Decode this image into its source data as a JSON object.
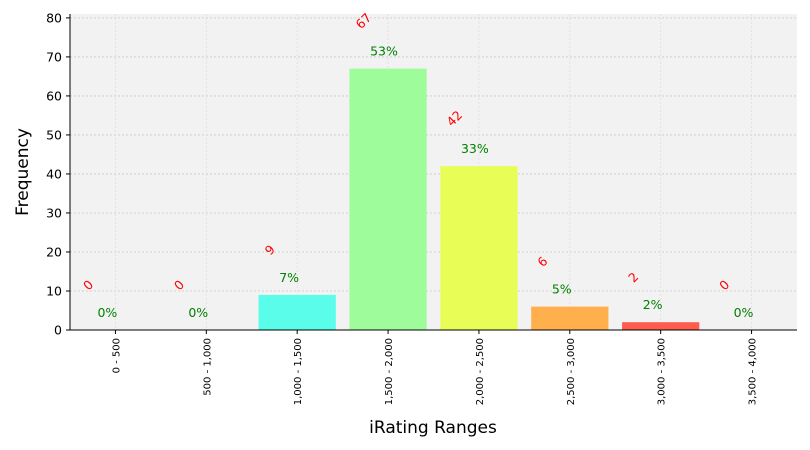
{
  "chart_data": {
    "type": "bar",
    "xlabel": "iRating Ranges",
    "ylabel": "Frequency",
    "ylim": [
      0,
      81
    ],
    "yticks": [
      0,
      10,
      20,
      30,
      40,
      50,
      60,
      70,
      80
    ],
    "grid": true,
    "categories": [
      "0 - 500",
      "500 - 1,000",
      "1,000 - 1,500",
      "1,500 - 2,000",
      "2,000 - 2,500",
      "2,500 - 3,000",
      "3,000 - 3,500",
      "3,500 - 4,000"
    ],
    "values": [
      0,
      0,
      9,
      67,
      42,
      6,
      2,
      0
    ],
    "count_labels": [
      "0",
      "0",
      "9",
      "67",
      "42",
      "6",
      "2",
      "0"
    ],
    "percent_labels": [
      "0%",
      "0%",
      "7%",
      "53%",
      "33%",
      "5%",
      "2%",
      "0%"
    ],
    "bar_colors": [
      "#ff6e6e",
      "#ffb04d",
      "#59fde9",
      "#9ffc9a",
      "#e8fd56",
      "#ffb04d",
      "#ff5c4d",
      "#ff6e6e"
    ],
    "count_label_color": "#ff0000",
    "percent_label_color": "#008000",
    "plot_background": "#f2f2f2"
  }
}
